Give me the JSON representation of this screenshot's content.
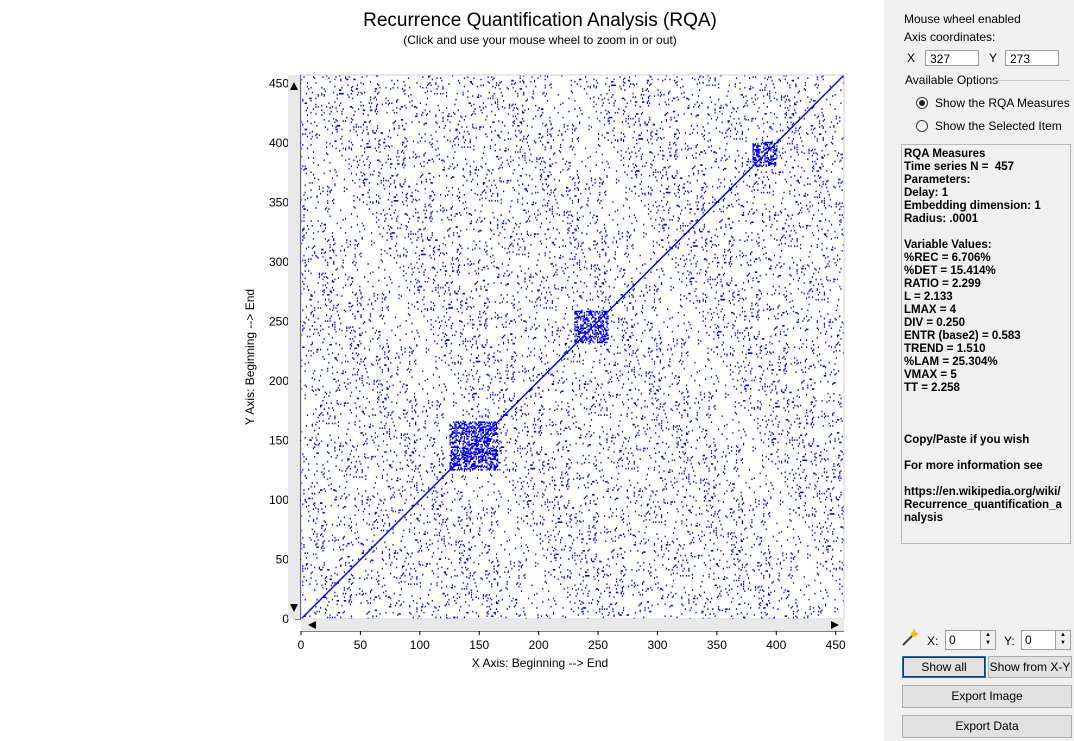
{
  "plot": {
    "title": "Recurrence Quantification Analysis (RQA)",
    "subtitle": "(Click and use your mouse wheel to zoom in or out)",
    "xlabel": "X Axis: Beginning --> End",
    "ylabel": "Y Axis: Beginning --> End",
    "x_ticks": [
      "0",
      "50",
      "100",
      "150",
      "200",
      "250",
      "300",
      "350",
      "400",
      "450"
    ],
    "y_ticks": [
      "0",
      "50",
      "100",
      "150",
      "200",
      "250",
      "300",
      "350",
      "400",
      "450"
    ],
    "point_color": "#0000ff"
  },
  "chart_data": {
    "type": "heatmap",
    "description_series_length": 457,
    "xlim": [
      0,
      457
    ],
    "ylim": [
      0,
      457
    ],
    "x_ticks": [
      0,
      50,
      100,
      150,
      200,
      250,
      300,
      350,
      400,
      450
    ],
    "y_ticks": [
      0,
      50,
      100,
      150,
      200,
      250,
      300,
      350,
      400,
      450
    ],
    "xlabel": "X Axis: Beginning --> End",
    "ylabel": "Y Axis: Beginning --> End",
    "title": "Recurrence Quantification Analysis (RQA)",
    "dense_blocks": [
      {
        "x": [
          125,
          165
        ],
        "y": [
          125,
          165
        ]
      },
      {
        "x": [
          230,
          258
        ],
        "y": [
          232,
          258
        ]
      },
      {
        "x": [
          380,
          400
        ],
        "y": [
          380,
          400
        ]
      }
    ],
    "recurrence_rate_percent": 6.706
  },
  "side": {
    "mouse_wheel": "Mouse wheel enabled",
    "axis_coords_label": "Axis coordinates:",
    "x_label": "X",
    "x_value": "327",
    "y_label": "Y",
    "y_value": "273",
    "options_label": "Available Options",
    "opt_measures": "Show the RQA Measures",
    "opt_selected": "Show the Selected Item",
    "measures_text": "RQA Measures\nTime series N =  457\nParameters:\nDelay: 1\nEmbedding dimension: 1\nRadius: .0001\n\nVariable Values:\n%REC = 6.706%\n%DET = 15.414%\nRATIO = 2.299\nL = 2.133\nLMAX = 4\nDIV = 0.250\nENTR (base2) = 0.583\nTREND = 1.510\n%LAM = 25.304%\nVMAX = 5\nTT = 2.258\n\n\n\nCopy/Paste if you wish\n\nFor more information see\n\nhttps://en.wikipedia.org/wiki/Recurrence_quantification_analysis",
    "spin_x_label": "X:",
    "spin_x_value": "0",
    "spin_y_label": "Y:",
    "spin_y_value": "0",
    "show_all": "Show all",
    "show_from_xy": "Show from X-Y",
    "export_image": "Export Image",
    "export_data": "Export Data"
  }
}
